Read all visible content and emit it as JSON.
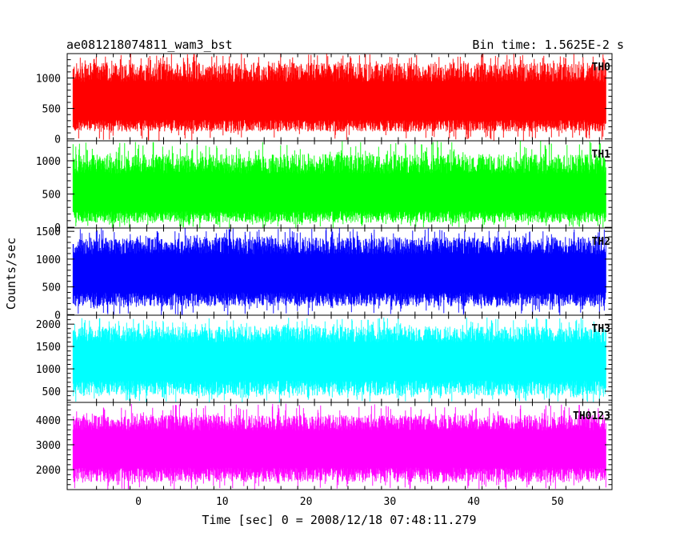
{
  "header": {
    "title": "ae081218074811_wam3_bst",
    "bin_time": "Bin time: 1.5625E-2 s"
  },
  "chart_data": {
    "type": "line",
    "title": "ae081218074811_wam3_bst",
    "xlabel": "Time [sec] 0 = 2008/12/18 07:48:11.279",
    "ylabel": "Counts/sec",
    "xlim": [
      -8.5,
      56.5
    ],
    "xticks": [
      0,
      10,
      20,
      30,
      40,
      50
    ],
    "x_range_of_data": [
      -7.8,
      55.8
    ],
    "bin_time_s": 0.015625,
    "series": [
      {
        "name": "TH0",
        "color": "#ff0000",
        "ylim": [
          -30,
          1400
        ],
        "yticks": [
          0,
          500,
          1000
        ],
        "baseline": 550,
        "low": 120,
        "high": 1250,
        "peak": 1400
      },
      {
        "name": "TH1",
        "color": "#00ff00",
        "ylim": [
          -10,
          1300
        ],
        "yticks": [
          0,
          500,
          1000
        ],
        "baseline": 450,
        "low": 70,
        "high": 1100,
        "peak": 1300
      },
      {
        "name": "TH2",
        "color": "#0000ff",
        "ylim": [
          -10,
          1560
        ],
        "yticks": [
          0,
          500,
          1000,
          1500
        ],
        "baseline": 700,
        "low": 150,
        "high": 1400,
        "peak": 1560
      },
      {
        "name": "TH3",
        "color": "#00ffff",
        "ylim": [
          250,
          2200
        ],
        "yticks": [
          500,
          1000,
          1500,
          2000
        ],
        "baseline": 1150,
        "low": 400,
        "high": 1950,
        "peak": 2150
      },
      {
        "name": "TH0123",
        "color": "#ff00ff",
        "ylim": [
          1200,
          4700
        ],
        "yticks": [
          2000,
          3000,
          4000
        ],
        "baseline": 2800,
        "low": 1500,
        "high": 4200,
        "peak": 4650
      }
    ]
  }
}
